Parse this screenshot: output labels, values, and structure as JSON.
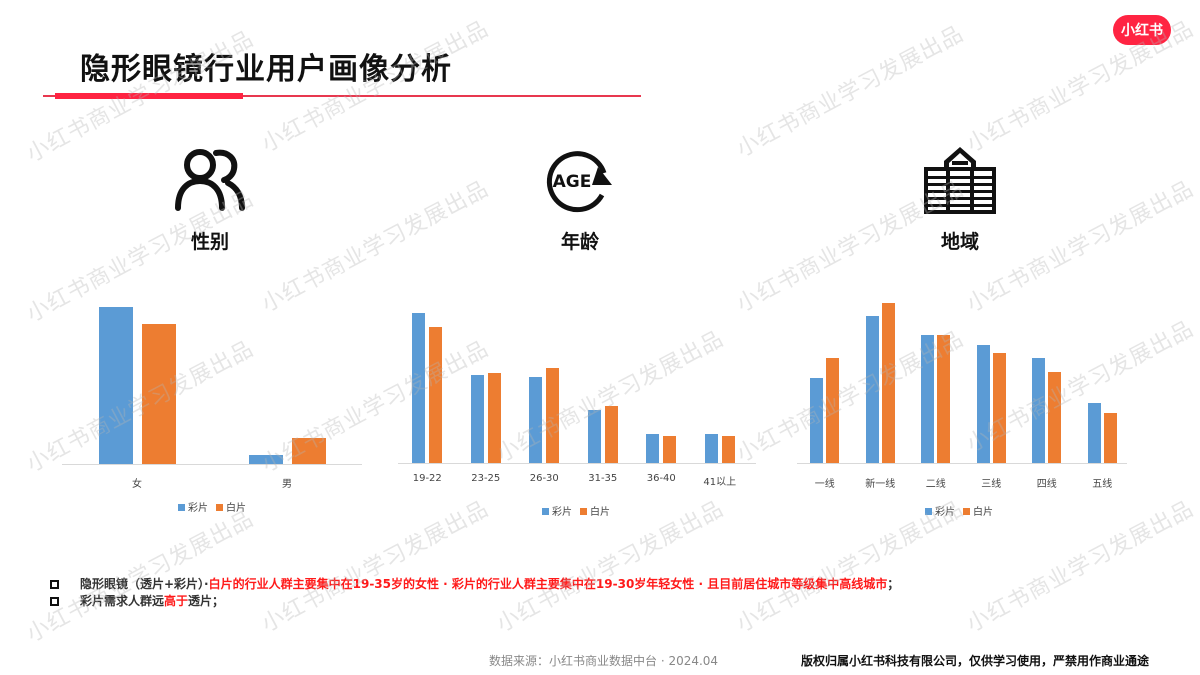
{
  "header": {
    "title": "隐形眼镜行业用户画像分析",
    "logo_text": "小红书",
    "brand_color": "#ff2442"
  },
  "watermark_text": "小红书商业学习发展出品",
  "sections": [
    {
      "icon": "people-icon",
      "label": "性别"
    },
    {
      "icon": "age-cycle-icon",
      "label": "年龄"
    },
    {
      "icon": "buildings-icon",
      "label": "地域"
    }
  ],
  "legend": {
    "series0": "彩片",
    "series1": "白片"
  },
  "colors": {
    "series0": "#5b9bd5",
    "series1": "#ed7d31"
  },
  "chart_data": [
    {
      "type": "bar",
      "title": "性别",
      "categories": [
        "女",
        "男"
      ],
      "series": [
        {
          "name": "彩片",
          "values": [
            157,
            9
          ]
        },
        {
          "name": "白片",
          "values": [
            140,
            26
          ]
        }
      ],
      "xlabel": "",
      "ylabel": "",
      "ylim": [
        0,
        160
      ],
      "grid": false,
      "legend_position": "bottom",
      "note": "Values are relative bar heights (no axis shown)"
    },
    {
      "type": "bar",
      "title": "年龄",
      "categories": [
        "19-22",
        "23-25",
        "26-30",
        "31-35",
        "36-40",
        "41以上"
      ],
      "series": [
        {
          "name": "彩片",
          "values": [
            150,
            88,
            86,
            53,
            29,
            29
          ]
        },
        {
          "name": "白片",
          "values": [
            136,
            90,
            95,
            57,
            27,
            27
          ]
        }
      ],
      "xlabel": "",
      "ylabel": "",
      "ylim": [
        0,
        160
      ],
      "grid": false,
      "legend_position": "bottom",
      "note": "Values are relative bar heights (no axis shown)"
    },
    {
      "type": "bar",
      "title": "地域",
      "categories": [
        "一线",
        "新一线",
        "二线",
        "三线",
        "四线",
        "五线"
      ],
      "series": [
        {
          "name": "彩片",
          "values": [
            85,
            147,
            128,
            118,
            105,
            60
          ]
        },
        {
          "name": "白片",
          "values": [
            105,
            160,
            128,
            110,
            91,
            50
          ]
        }
      ],
      "xlabel": "",
      "ylabel": "",
      "ylim": [
        0,
        160
      ],
      "grid": false,
      "legend_position": "bottom",
      "note": "Values are relative bar heights (no axis shown)"
    }
  ],
  "notes": [
    {
      "plain": "隐形眼镜（透片+彩片）· ",
      "red": "白片的行业人群主要集中在19-35岁的女性 · 彩片的行业人群主要集中在19-30岁年轻女性 · 且目前居住城市等级集中高线城市",
      "tail": "；"
    },
    {
      "plain": "彩片需求人群远",
      "red": "高于",
      "tail": "透片；"
    }
  ],
  "footer": {
    "source": "数据来源：小红书商业数据中台 · 2024.04",
    "copyright": "版权归属小红书科技有限公司，仅供学习使用，严禁用作商业通途"
  }
}
